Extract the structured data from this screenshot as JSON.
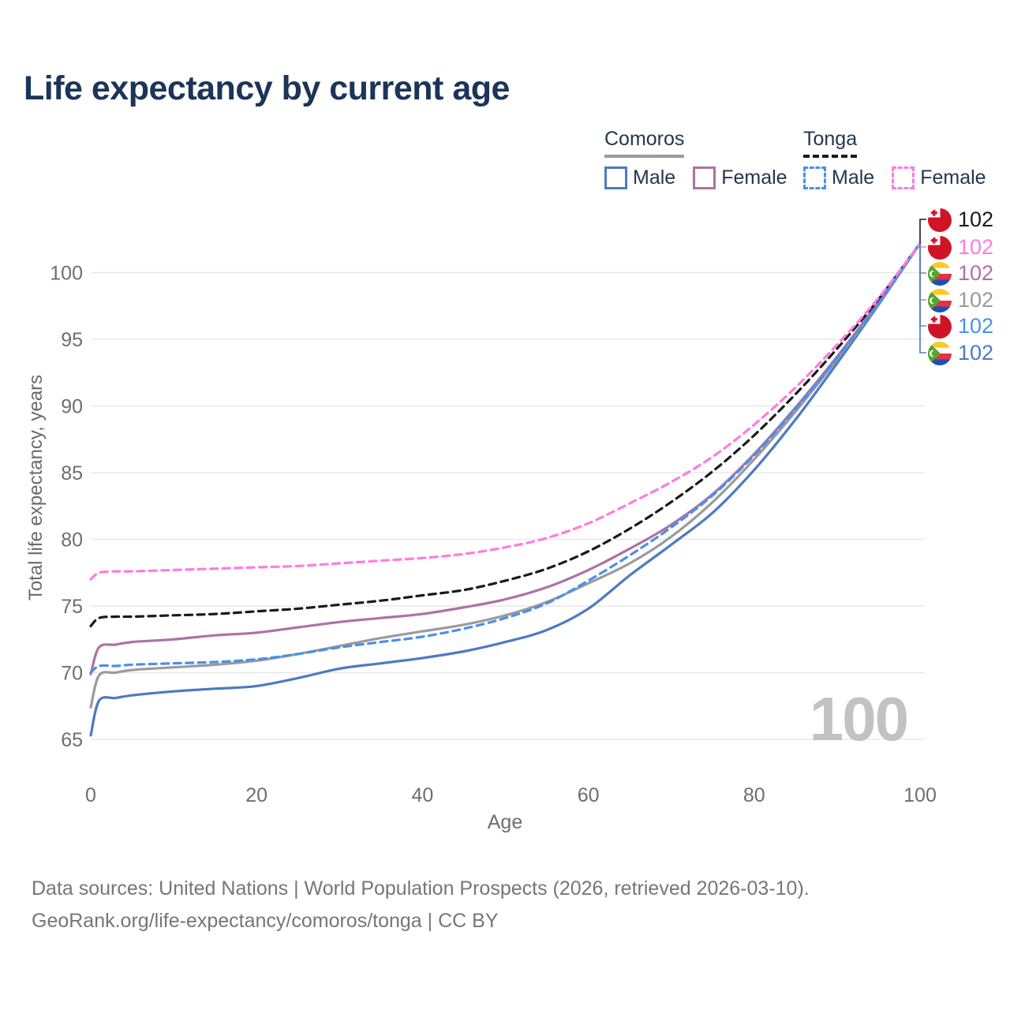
{
  "title": "Life expectancy by current age",
  "legend": {
    "groups": [
      {
        "label": "Comoros",
        "underline_color": "#9a9a9a",
        "underline_style": "solid",
        "items": [
          {
            "label": "Male",
            "color": "#4d7ac2",
            "dash": false
          },
          {
            "label": "Female",
            "color": "#ad72a5",
            "dash": false
          }
        ]
      },
      {
        "label": "Tonga",
        "underline_color": "#1a1a1a",
        "underline_style": "dashed",
        "items": [
          {
            "label": "Male",
            "color": "#4a90e8",
            "dash": true
          },
          {
            "label": "Female",
            "color": "#ff7be1",
            "dash": true
          }
        ]
      }
    ]
  },
  "chart_data": {
    "type": "line",
    "title": "Life expectancy by current age",
    "xlabel": "Age",
    "ylabel": "Total life expectancy, years",
    "xlim": [
      0,
      100
    ],
    "ylim": [
      65,
      102.5
    ],
    "xticks": [
      0,
      20,
      40,
      60,
      80,
      100
    ],
    "yticks": [
      65,
      70,
      75,
      80,
      85,
      90,
      95,
      100
    ],
    "grid": true,
    "legend_position": "top-right",
    "x": [
      0,
      1,
      3,
      5,
      10,
      15,
      20,
      25,
      30,
      35,
      40,
      45,
      50,
      55,
      60,
      65,
      70,
      75,
      80,
      85,
      90,
      95,
      100
    ],
    "series": [
      {
        "name": "Comoros Male",
        "country": "comoros",
        "color": "#4d7ac2",
        "dash": "solid",
        "values": [
          65.3,
          67.9,
          68.1,
          68.3,
          68.6,
          68.8,
          69.0,
          69.6,
          70.3,
          70.7,
          71.1,
          71.6,
          72.3,
          73.2,
          74.8,
          77.3,
          79.6,
          82.0,
          85.2,
          89.0,
          93.2,
          97.6,
          102.2
        ]
      },
      {
        "name": "Comoros",
        "country": "comoros",
        "color": "#9b9b9b",
        "dash": "solid",
        "values": [
          67.4,
          69.8,
          70.0,
          70.2,
          70.4,
          70.6,
          70.9,
          71.4,
          72.0,
          72.6,
          73.1,
          73.6,
          74.3,
          75.3,
          76.7,
          78.2,
          80.2,
          82.8,
          86.0,
          89.6,
          93.5,
          97.7,
          102.2
        ]
      },
      {
        "name": "Comoros Female",
        "country": "comoros",
        "color": "#ad72a5",
        "dash": "solid",
        "values": [
          69.9,
          71.9,
          72.1,
          72.3,
          72.5,
          72.8,
          73.0,
          73.4,
          73.8,
          74.1,
          74.4,
          74.9,
          75.5,
          76.4,
          77.7,
          79.3,
          81.1,
          83.4,
          86.4,
          89.9,
          93.7,
          97.8,
          102.2
        ]
      },
      {
        "name": "Tonga",
        "country": "tonga",
        "color": "#1a1a1a",
        "dash": "dashed",
        "values": [
          73.5,
          74.1,
          74.2,
          74.2,
          74.3,
          74.4,
          74.6,
          74.8,
          75.1,
          75.4,
          75.8,
          76.2,
          76.9,
          77.8,
          79.1,
          80.8,
          82.8,
          85.1,
          87.8,
          90.9,
          94.3,
          98.0,
          102.2
        ]
      },
      {
        "name": "Tonga Male",
        "country": "tonga",
        "color": "#4a90e8",
        "dash": "dashed",
        "values": [
          70.0,
          70.5,
          70.5,
          70.6,
          70.7,
          70.8,
          71.0,
          71.4,
          71.9,
          72.3,
          72.7,
          73.3,
          74.1,
          75.2,
          76.9,
          78.8,
          80.9,
          83.3,
          86.3,
          89.8,
          93.6,
          97.7,
          102.2
        ]
      },
      {
        "name": "Tonga Female",
        "country": "tonga",
        "color": "#ff7be1",
        "dash": "dashed",
        "values": [
          77.0,
          77.5,
          77.6,
          77.6,
          77.7,
          77.8,
          77.9,
          78.0,
          78.2,
          78.4,
          78.6,
          78.9,
          79.4,
          80.1,
          81.2,
          82.7,
          84.3,
          86.2,
          88.6,
          91.4,
          94.6,
          98.1,
          102.2
        ]
      }
    ],
    "end_labels": [
      {
        "series": "Tonga",
        "country": "tonga",
        "value": "102",
        "color": "#1a1a1a"
      },
      {
        "series": "Tonga Female",
        "country": "tonga",
        "value": "102",
        "color": "#ff7be1"
      },
      {
        "series": "Comoros Female",
        "country": "comoros",
        "value": "102",
        "color": "#ad72a5"
      },
      {
        "series": "Comoros",
        "country": "comoros",
        "value": "102",
        "color": "#9b9b9b"
      },
      {
        "series": "Tonga Male",
        "country": "tonga",
        "value": "102",
        "color": "#4a90e8"
      },
      {
        "series": "Comoros Male",
        "country": "comoros",
        "value": "102",
        "color": "#4d7ac2"
      }
    ]
  },
  "watermark": "100",
  "colors": {
    "title_text": "#1b3558",
    "legend_text": "#25364e",
    "tick_text": "#6e6e6e",
    "gridline": "#e8e8e8",
    "footer_text": "#767676",
    "watermark_text": "#c2c2c2"
  },
  "footer": {
    "line1": "Data sources: United Nations | World Population Prospects (2026, retrieved 2026-03-10).",
    "line2": "GeoRank.org/life-expectancy/comoros/tonga | CC BY"
  }
}
